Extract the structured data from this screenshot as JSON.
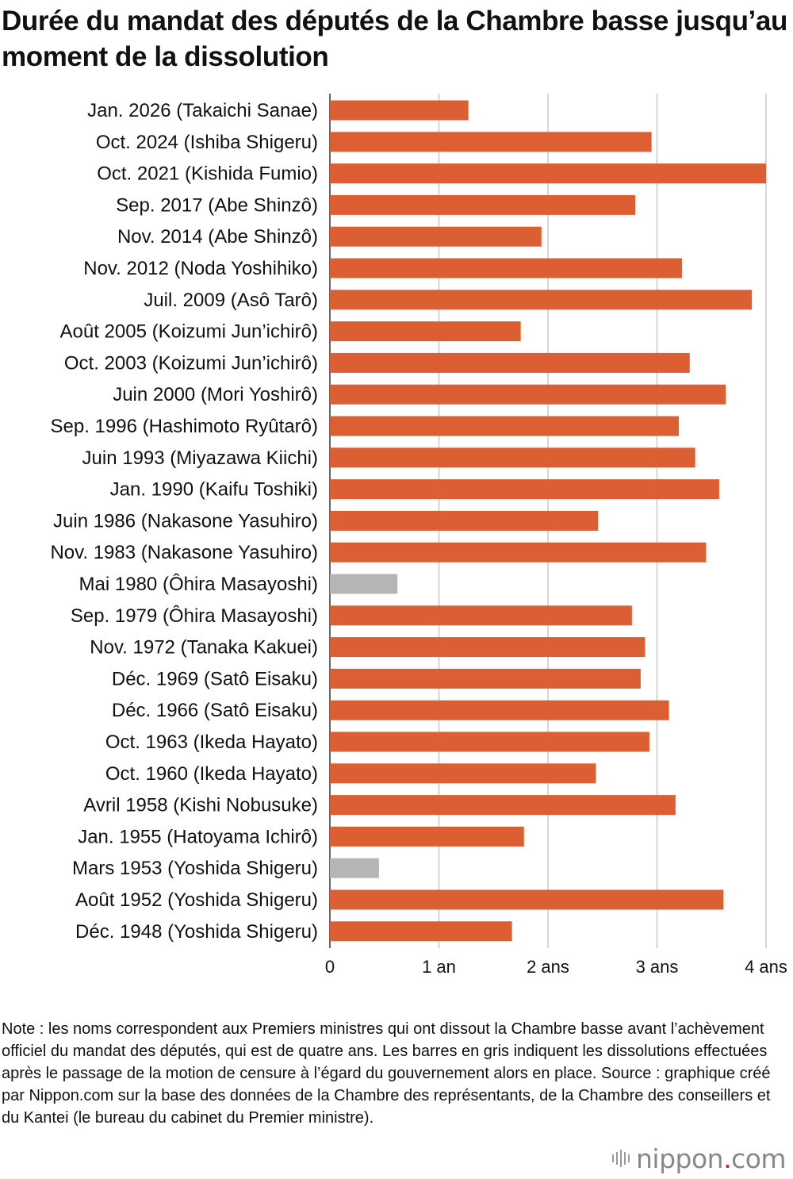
{
  "title": "Durée du mandat des députés de la Chambre basse jusqu’au moment de la dissolution",
  "note": "Note : les noms correspondent aux Premiers ministres qui ont dissout la Chambre basse avant l’achèvement officiel du mandat des députés, qui est de quatre ans. Les barres en gris indiquent les dissolutions effectuées après le passage de la motion de censure à l’égard du gouvernement alors en place. Source : graphique créé par Nippon.com sur la base des données de la Chambre des représentants, de la Chambre des conseillers et du Kantei (le bureau du cabinet du Premier ministre).",
  "logo": {
    "text_main": "nippon",
    "text_dot": ".",
    "text_tail": "com"
  },
  "colors": {
    "normal": "#DB5F33",
    "censure": "#B5B5B5",
    "grid": "#C8C8C8",
    "axis": "#333333"
  },
  "chart_data": {
    "type": "bar",
    "orientation": "horizontal",
    "title": "Durée du mandat des députés de la Chambre basse jusqu’au moment de la dissolution",
    "xlim": [
      0,
      4
    ],
    "grid": true,
    "x_ticks": [
      {
        "value": 0,
        "label": "0"
      },
      {
        "value": 1,
        "label": "1 an"
      },
      {
        "value": 2,
        "label": "2 ans"
      },
      {
        "value": 3,
        "label": "3 ans"
      },
      {
        "value": 4,
        "label": "4 ans"
      }
    ],
    "categories": [
      "Jan. 2026 (Takaichi Sanae)",
      "Oct. 2024 (Ishiba Shigeru)",
      "Oct. 2021 (Kishida Fumio)",
      "Sep. 2017 (Abe Shinzô)",
      "Nov. 2014 (Abe Shinzô)",
      "Nov. 2012 (Noda Yoshihiko)",
      "Juil. 2009 (Asô Tarô)",
      "Août 2005 (Koizumi Jun’ichirô)",
      "Oct. 2003 (Koizumi Jun’ichirô)",
      "Juin 2000 (Mori Yoshirô)",
      "Sep. 1996 (Hashimoto Ryûtarô)",
      "Juin 1993 (Miyazawa Kiichi)",
      "Jan. 1990 (Kaifu Toshiki)",
      "Juin 1986 (Nakasone Yasuhiro)",
      "Nov. 1983 (Nakasone Yasuhiro)",
      "Mai 1980 (Ôhira Masayoshi)",
      "Sep. 1979 (Ôhira Masayoshi)",
      "Nov. 1972 (Tanaka Kakuei)",
      "Déc. 1969 (Satô Eisaku)",
      "Déc. 1966 (Satô Eisaku)",
      "Oct. 1963 (Ikeda Hayato)",
      "Oct. 1960 (Ikeda Hayato)",
      "Avril 1958 (Kishi Nobusuke)",
      "Jan. 1955 (Hatoyama Ichirô)",
      "Mars 1953 (Yoshida Shigeru)",
      "Août 1952 (Yoshida Shigeru)",
      "Déc. 1948 (Yoshida Shigeru)"
    ],
    "values": [
      1.27,
      2.95,
      4.0,
      2.8,
      1.94,
      3.23,
      3.87,
      1.75,
      3.3,
      3.63,
      3.2,
      3.35,
      3.57,
      2.46,
      3.45,
      0.62,
      2.77,
      2.89,
      2.85,
      3.11,
      2.93,
      2.44,
      3.17,
      1.78,
      0.45,
      3.61,
      1.67
    ],
    "censure": [
      false,
      false,
      false,
      false,
      false,
      false,
      false,
      false,
      false,
      false,
      false,
      false,
      false,
      false,
      false,
      true,
      false,
      false,
      false,
      false,
      false,
      false,
      false,
      false,
      true,
      false,
      false
    ]
  }
}
